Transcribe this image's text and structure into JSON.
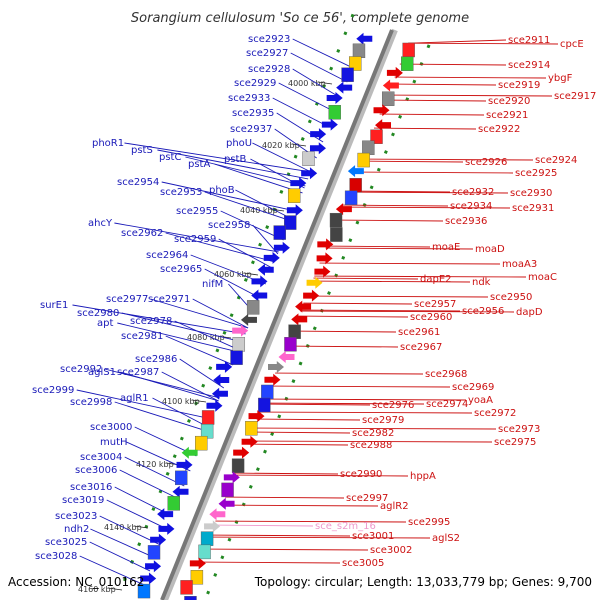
{
  "title": "Sorangium cellulosum 'So ce 56', complete genome",
  "footer": {
    "accession": "Accession: NC_010162",
    "topology": "Topology: circular; Length: 13,033,779 bp; Genes: 9,700"
  },
  "colors": {
    "left_label": "#1a1ab8",
    "right_label": "#cc1111",
    "pseudo_label": "#ee99cc",
    "backbone": "#777777",
    "tick": "#228822"
  },
  "kbp_marks": [
    "4000 kbp",
    "4020 kbp",
    "4040 kbp",
    "4060 kbp",
    "4080 kbp",
    "4100 kbp",
    "4120 kbp",
    "4140 kbp",
    "4160 kbp"
  ],
  "left_labels": [
    "sce2923",
    "sce2927",
    "sce2928",
    "sce2929",
    "sce2933",
    "sce2935",
    "sce2937",
    "phoU",
    "pstB",
    "phoR1",
    "pstS",
    "pstC",
    "pstA",
    "sce2954",
    "sce2953",
    "phoB",
    "sce2955",
    "sce2958",
    "ahcY",
    "sce2962",
    "sce2959",
    "sce2964",
    "sce2965",
    "nifM",
    "sce2977",
    "sce2971",
    "surE1",
    "sce2980",
    "sce2978",
    "apt",
    "sce2981",
    "sce2986",
    "sce2992",
    "aglS1",
    "sce2987",
    "sce2999",
    "sce2998",
    "aglR1",
    "sce3000",
    "mutH",
    "sce3004",
    "sce3006",
    "sce3016",
    "sce3019",
    "sce3023",
    "ndh2",
    "sce3025",
    "sce3028"
  ],
  "right_labels": [
    "sce2911",
    "cpcE",
    "sce2914",
    "ybgF",
    "sce2919",
    "sce2917",
    "sce2920",
    "sce2921",
    "sce2922",
    "sce2924",
    "sce2926",
    "sce2925",
    "sce2932",
    "sce2930",
    "sce2934",
    "sce2931",
    "sce2936",
    "moaE",
    "moaD",
    "moaA3",
    "moaC",
    "dapE2",
    "ndk",
    "sce2950",
    "sce2957",
    "sce2956",
    "dapD",
    "sce2960",
    "sce2961",
    "sce2967",
    "sce2968",
    "sce2969",
    "sce2974",
    "yoaA",
    "sce2976",
    "sce2972",
    "sce2979",
    "sce2973",
    "sce2982",
    "sce2975",
    "sce2988",
    "sce2990",
    "hppA",
    "sce2997",
    "aglR2",
    "sce2995",
    "sce3001",
    "aglS2",
    "sce3002",
    "sce3005"
  ],
  "pseudo_labels": [
    "sce_s2m_16"
  ]
}
